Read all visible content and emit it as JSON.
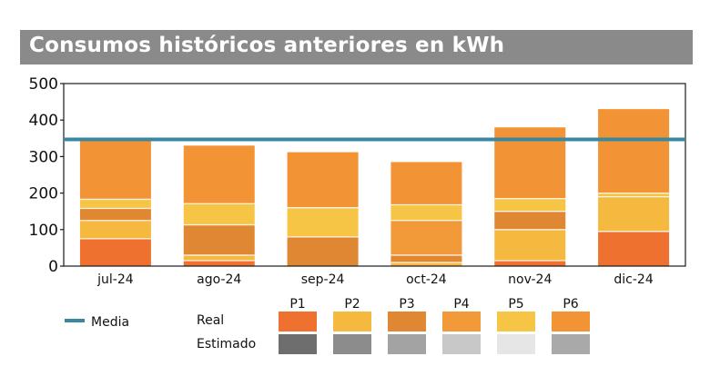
{
  "title": "Consumos históricos anteriores en kWh",
  "colors": {
    "P1": "#ee7130",
    "P2": "#f5b93f",
    "P3": "#e08733",
    "P4": "#f29a3a",
    "P5": "#f7c545",
    "P6": "#f29436",
    "media_line": "#3a87a0",
    "estimado": [
      "#6e6e6e",
      "#8c8c8c",
      "#a3a3a3",
      "#c8c8c8",
      "#e6e6e6",
      "#a9a9a9"
    ]
  },
  "chart_data": {
    "type": "bar",
    "stacked": true,
    "categories": [
      "jul-24",
      "ago-24",
      "sep-24",
      "oct-24",
      "nov-24",
      "dic-24"
    ],
    "ylim": [
      0,
      500
    ],
    "yticks": [
      "0",
      "100",
      "200",
      "300",
      "400",
      "500"
    ],
    "grid": false,
    "series": [
      {
        "name": "P1",
        "values": [
          75,
          15,
          0,
          0,
          15,
          95
        ]
      },
      {
        "name": "P2",
        "values": [
          50,
          15,
          0,
          10,
          85,
          95
        ]
      },
      {
        "name": "P3",
        "values": [
          33,
          83,
          80,
          20,
          50,
          0
        ]
      },
      {
        "name": "P4",
        "values": [
          0,
          0,
          0,
          95,
          0,
          0
        ]
      },
      {
        "name": "P5",
        "values": [
          25,
          58,
          80,
          43,
          35,
          10
        ]
      },
      {
        "name": "P6",
        "values": [
          165,
          159,
          152,
          117,
          195,
          230
        ]
      }
    ],
    "media": 347,
    "legend": {
      "media_label": "Media",
      "real_label": "Real",
      "estimado_label": "Estimado",
      "periods": [
        "P1",
        "P2",
        "P3",
        "P4",
        "P5",
        "P6"
      ]
    }
  }
}
